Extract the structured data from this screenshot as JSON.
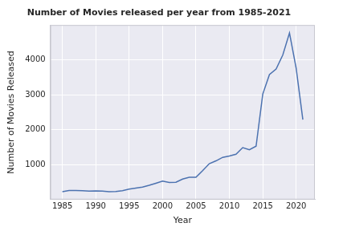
{
  "chart_data": {
    "type": "line",
    "title": "Number of Movies released per year from 1985-2021",
    "x_label": "Year",
    "y_label": "Number of Movies Released",
    "x": [
      1985,
      1986,
      1987,
      1988,
      1989,
      1990,
      1991,
      1992,
      1993,
      1994,
      1995,
      1996,
      1997,
      1998,
      1999,
      2000,
      2001,
      2002,
      2003,
      2004,
      2005,
      2006,
      2007,
      2008,
      2009,
      2010,
      2011,
      2012,
      2013,
      2014,
      2015,
      2016,
      2017,
      2018,
      2019,
      2020,
      2021
    ],
    "values": [
      230,
      260,
      265,
      255,
      245,
      250,
      245,
      230,
      235,
      255,
      300,
      330,
      360,
      410,
      470,
      530,
      490,
      500,
      590,
      640,
      640,
      830,
      1030,
      1110,
      1210,
      1250,
      1300,
      1490,
      1430,
      1530,
      3020,
      3580,
      3740,
      4140,
      4770,
      3760,
      2290
    ],
    "color": "#4c72b0",
    "xlim": [
      1983.2,
      2022.8
    ],
    "xticks": [
      1985,
      1990,
      1995,
      2000,
      2005,
      2010,
      2015,
      2020
    ],
    "ylim": [
      3,
      4997
    ],
    "yticks": [
      1000,
      2000,
      3000,
      4000
    ],
    "grid": true
  }
}
